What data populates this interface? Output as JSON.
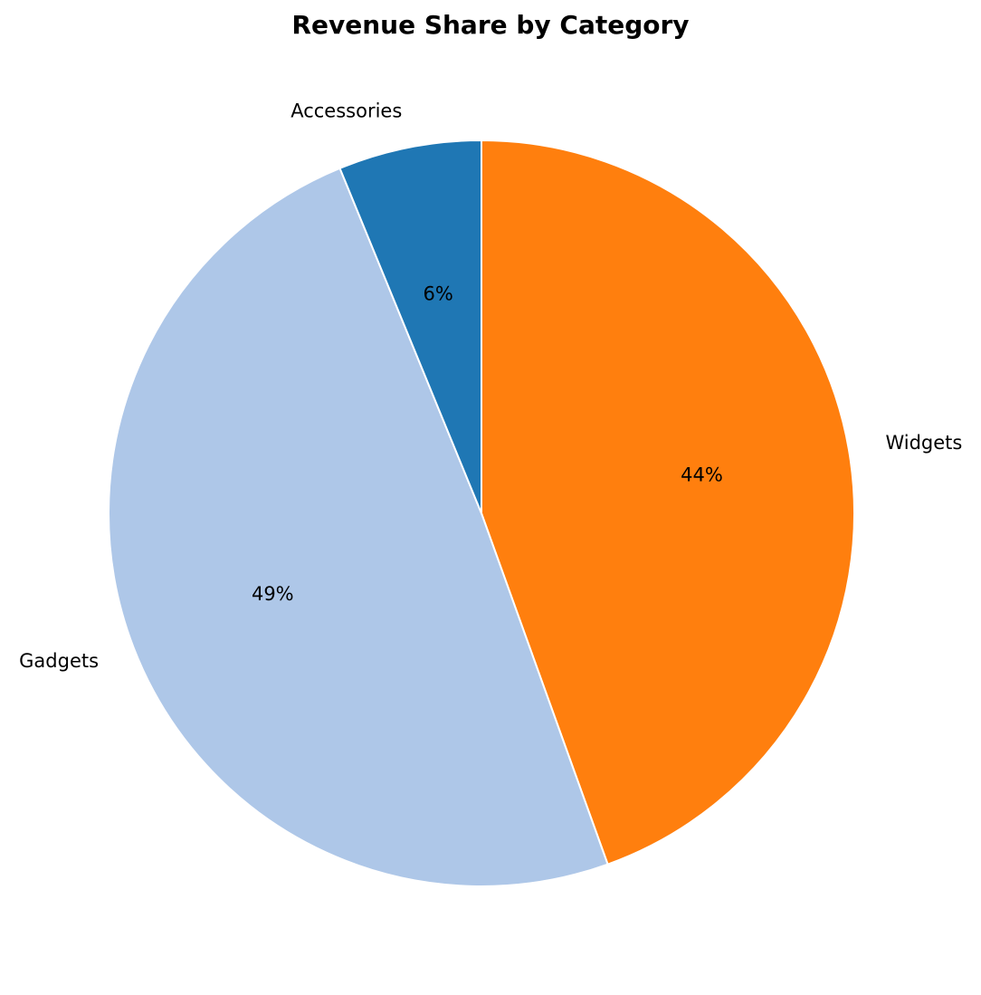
{
  "chart_data": {
    "type": "pie",
    "title": "Revenue Share by Category",
    "categories": [
      "Widgets",
      "Gadgets",
      "Accessories"
    ],
    "values": [
      44.5,
      49.3,
      6.2
    ],
    "percent_labels": [
      "44%",
      "49%",
      "6%"
    ],
    "colors": [
      "#ff7f0e",
      "#aec7e8",
      "#1f77b4"
    ],
    "start_angle_deg": 90,
    "direction": "clockwise",
    "legend": "none"
  }
}
